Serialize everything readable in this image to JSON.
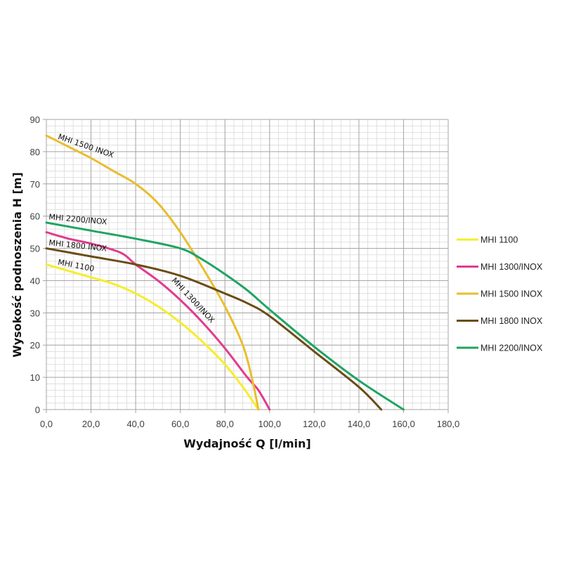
{
  "chart_data": {
    "type": "line",
    "title": "",
    "xlabel": "Wydajność Q [l/min]",
    "ylabel": "Wysokość podnoszenia H [m]",
    "xlim": [
      0,
      180
    ],
    "ylim": [
      0,
      90
    ],
    "x_ticks": [
      "0,0",
      "20,0",
      "40,0",
      "60,0",
      "80,0",
      "100,0",
      "120,0",
      "140,0",
      "160,0",
      "180,0"
    ],
    "y_ticks": [
      "0",
      "10",
      "20",
      "30",
      "40",
      "50",
      "60",
      "70",
      "80",
      "90"
    ],
    "grid": true,
    "legend_position": "right",
    "series": [
      {
        "name": "MHI 1100",
        "color": "#f5ee2a",
        "points": [
          [
            0,
            45
          ],
          [
            10,
            43
          ],
          [
            20,
            41
          ],
          [
            30,
            39
          ],
          [
            40,
            36
          ],
          [
            50,
            32
          ],
          [
            60,
            27
          ],
          [
            70,
            21
          ],
          [
            80,
            14
          ],
          [
            88,
            7
          ],
          [
            95,
            0
          ]
        ]
      },
      {
        "name": "MHI 1300/INOX",
        "color": "#e23b8e",
        "points": [
          [
            0,
            55
          ],
          [
            10,
            53
          ],
          [
            20,
            51.5
          ],
          [
            30,
            49.5
          ],
          [
            35,
            48
          ],
          [
            40,
            45
          ],
          [
            50,
            40
          ],
          [
            60,
            34
          ],
          [
            70,
            27
          ],
          [
            80,
            19
          ],
          [
            90,
            10
          ],
          [
            95,
            6
          ],
          [
            100,
            0
          ]
        ]
      },
      {
        "name": "MHI 1500 INOX",
        "color": "#e8be2e",
        "points": [
          [
            0,
            85
          ],
          [
            10,
            81.5
          ],
          [
            20,
            78
          ],
          [
            30,
            74
          ],
          [
            40,
            70
          ],
          [
            50,
            64
          ],
          [
            60,
            55
          ],
          [
            70,
            44
          ],
          [
            80,
            32
          ],
          [
            88,
            20
          ],
          [
            92,
            10
          ],
          [
            95,
            0
          ]
        ]
      },
      {
        "name": "MHI 1800 INOX",
        "color": "#6b4c14",
        "points": [
          [
            0,
            50
          ],
          [
            20,
            47.5
          ],
          [
            40,
            45
          ],
          [
            60,
            41.5
          ],
          [
            80,
            36
          ],
          [
            90,
            33
          ],
          [
            100,
            29
          ],
          [
            120,
            18
          ],
          [
            140,
            7
          ],
          [
            150,
            0
          ]
        ]
      },
      {
        "name": "MHI 2200/INOX",
        "color": "#1fa463",
        "points": [
          [
            0,
            58
          ],
          [
            20,
            55.5
          ],
          [
            40,
            53
          ],
          [
            60,
            50
          ],
          [
            70,
            46.5
          ],
          [
            80,
            42
          ],
          [
            90,
            37
          ],
          [
            100,
            31
          ],
          [
            120,
            19.5
          ],
          [
            140,
            9
          ],
          [
            160,
            0
          ]
        ]
      }
    ],
    "annotations": [
      {
        "text": "MHI 1500 INOX",
        "x": 5,
        "y": 84,
        "angle": 19
      },
      {
        "text": "MHI 2200/INOX",
        "x": 1,
        "y": 59,
        "angle": 5
      },
      {
        "text": "MHI 1800 INOX",
        "x": 1,
        "y": 51,
        "angle": 6
      },
      {
        "text": "MHI 1100",
        "x": 5,
        "y": 45,
        "angle": 11
      },
      {
        "text": "MHI 1300/INOX",
        "x": 56,
        "y": 40,
        "angle": 47
      }
    ]
  }
}
